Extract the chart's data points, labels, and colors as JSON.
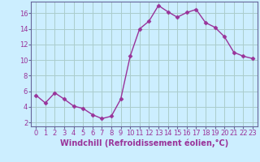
{
  "x": [
    0,
    1,
    2,
    3,
    4,
    5,
    6,
    7,
    8,
    9,
    10,
    11,
    12,
    13,
    14,
    15,
    16,
    17,
    18,
    19,
    20,
    21,
    22,
    23
  ],
  "y": [
    5.5,
    4.5,
    5.8,
    5.0,
    4.1,
    3.8,
    3.0,
    2.5,
    2.8,
    5.0,
    10.5,
    14.0,
    15.0,
    17.0,
    16.2,
    15.5,
    16.1,
    16.5,
    14.8,
    14.2,
    13.0,
    11.0,
    10.5,
    10.2
  ],
  "line_color": "#993399",
  "marker": "D",
  "marker_size": 2.5,
  "bg_color": "#cceeff",
  "grid_color": "#aacccc",
  "xlabel": "Windchill (Refroidissement éolien,°C)",
  "xlim": [
    -0.5,
    23.5
  ],
  "ylim": [
    1.5,
    17.5
  ],
  "yticks": [
    2,
    4,
    6,
    8,
    10,
    12,
    14,
    16
  ],
  "xticks": [
    0,
    1,
    2,
    3,
    4,
    5,
    6,
    7,
    8,
    9,
    10,
    11,
    12,
    13,
    14,
    15,
    16,
    17,
    18,
    19,
    20,
    21,
    22,
    23
  ],
  "xlabel_fontsize": 7,
  "tick_fontsize": 6,
  "line_width": 1.0,
  "spine_color": "#666699"
}
